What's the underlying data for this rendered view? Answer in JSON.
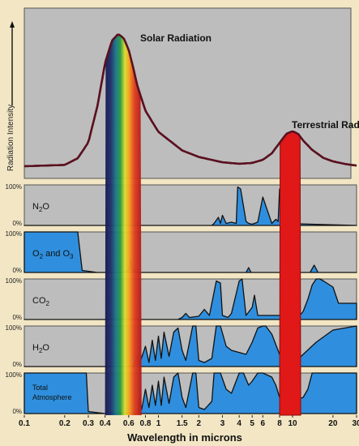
{
  "chart_data": [
    {
      "type": "line",
      "ylabel": "Radiation Intensity",
      "xlabel": "Wavelength in microns",
      "x_scale": "log",
      "xlim": [
        0.1,
        30
      ],
      "series": [
        {
          "name": "Solar Radiation",
          "x": [
            0.1,
            0.2,
            0.25,
            0.3,
            0.35,
            0.4,
            0.45,
            0.5,
            0.55,
            0.6,
            0.65,
            0.7,
            0.8,
            1.0,
            1.5,
            2,
            3,
            5,
            10,
            30
          ],
          "values": [
            0.0,
            0.01,
            0.06,
            0.18,
            0.45,
            0.78,
            0.95,
            1.0,
            0.97,
            0.88,
            0.74,
            0.6,
            0.42,
            0.26,
            0.12,
            0.07,
            0.03,
            0.01,
            0.005,
            0.0
          ]
        },
        {
          "name": "Terrestrial Radiation",
          "x": [
            4,
            5,
            6,
            7,
            8,
            9,
            10,
            11,
            12,
            14,
            17,
            20,
            25,
            30
          ],
          "values": [
            0.0,
            0.015,
            0.04,
            0.09,
            0.17,
            0.24,
            0.26,
            0.24,
            0.19,
            0.12,
            0.06,
            0.035,
            0.015,
            0.005
          ]
        }
      ]
    },
    {
      "type": "area",
      "xlabel": "Wavelength in microns",
      "x_scale": "log",
      "xlim": [
        0.1,
        30
      ],
      "ylim": [
        0,
        100
      ],
      "y_ticks": [
        "0%",
        "100%"
      ],
      "x_ticks": [
        {
          "v": 0.1,
          "label": "0.1"
        },
        {
          "v": 0.2,
          "label": "0.2"
        },
        {
          "v": 0.3,
          "label": "0.3"
        },
        {
          "v": 0.4,
          "label": "0.4"
        },
        {
          "v": 0.6,
          "label": "0.6"
        },
        {
          "v": 0.8,
          "label": "0.8"
        },
        {
          "v": 1,
          "label": "1"
        },
        {
          "v": 1.5,
          "label": "1.5"
        },
        {
          "v": 2,
          "label": "2"
        },
        {
          "v": 3,
          "label": "3"
        },
        {
          "v": 4,
          "label": "4"
        },
        {
          "v": 5,
          "label": "5"
        },
        {
          "v": 6,
          "label": "6"
        },
        {
          "v": 8,
          "label": "8"
        },
        {
          "v": 10,
          "label": "10"
        },
        {
          "v": 20,
          "label": "20"
        },
        {
          "v": 30,
          "label": "30"
        }
      ],
      "series": [
        {
          "name": "N₂O",
          "x": [
            0.1,
            2.5,
            2.6,
            2.8,
            2.9,
            3.0,
            3.2,
            3.5,
            3.8,
            3.9,
            4.1,
            4.5,
            4.7,
            5.0,
            5.5,
            6.0,
            7.0,
            7.5,
            7.8,
            8.0,
            8.5,
            30
          ],
          "values": [
            0,
            0,
            5,
            20,
            5,
            25,
            5,
            8,
            5,
            95,
            90,
            10,
            5,
            3,
            8,
            70,
            5,
            15,
            10,
            90,
            5,
            0
          ]
        },
        {
          "name": "O₂ and O₃",
          "x": [
            0.1,
            0.24,
            0.25,
            0.27,
            0.3,
            0.35,
            0.45,
            0.55,
            0.6,
            0.62,
            0.65,
            0.7,
            1.0,
            4.5,
            4.7,
            4.9,
            9.0,
            9.2,
            9.4,
            9.6,
            9.8,
            10.0,
            13.5,
            14.5,
            15.5,
            30
          ],
          "values": [
            100,
            100,
            100,
            5,
            3,
            0,
            0,
            0,
            5,
            30,
            5,
            0,
            0,
            0,
            12,
            0,
            0,
            40,
            95,
            95,
            40,
            0,
            0,
            18,
            0,
            0
          ]
        },
        {
          "name": "CO₂",
          "x": [
            0.1,
            1.4,
            1.5,
            1.6,
            1.7,
            2.0,
            2.2,
            2.4,
            2.7,
            2.9,
            3.0,
            3.3,
            3.5,
            4.0,
            4.2,
            4.5,
            5.0,
            5.2,
            5.5,
            9.0,
            9.5,
            10.5,
            11,
            12,
            13,
            14,
            15,
            16,
            17,
            20,
            22,
            30
          ],
          "values": [
            0,
            0,
            5,
            15,
            5,
            8,
            25,
            10,
            95,
            90,
            10,
            5,
            15,
            95,
            100,
            10,
            30,
            60,
            10,
            10,
            15,
            10,
            5,
            20,
            50,
            85,
            100,
            100,
            95,
            80,
            40,
            40
          ]
        },
        {
          "name": "H₂O",
          "x": [
            0.1,
            0.65,
            0.7,
            0.72,
            0.8,
            0.85,
            0.9,
            0.95,
            1.0,
            1.05,
            1.1,
            1.2,
            1.3,
            1.4,
            1.5,
            1.6,
            1.8,
            1.9,
            2.0,
            2.2,
            2.5,
            2.7,
            2.9,
            3.2,
            3.5,
            4.5,
            5.0,
            5.5,
            6.0,
            6.3,
            7.0,
            8.0,
            10.0,
            12.0,
            15.0,
            20.0,
            30
          ],
          "values": [
            0,
            0,
            30,
            5,
            50,
            10,
            65,
            15,
            75,
            20,
            85,
            25,
            85,
            95,
            40,
            15,
            100,
            100,
            15,
            10,
            20,
            100,
            100,
            50,
            40,
            30,
            60,
            95,
            100,
            100,
            80,
            30,
            5,
            30,
            60,
            90,
            100
          ]
        },
        {
          "name": "Total Atmosphere",
          "x": [
            0.1,
            0.28,
            0.29,
            0.3,
            0.4,
            0.55,
            0.7,
            0.72,
            0.75,
            0.8,
            0.85,
            0.9,
            0.95,
            1.0,
            1.05,
            1.1,
            1.2,
            1.3,
            1.4,
            1.5,
            1.6,
            1.8,
            1.9,
            2.0,
            2.2,
            2.5,
            2.6,
            2.9,
            3.2,
            3.5,
            4.0,
            4.3,
            4.7,
            5.0,
            5.5,
            6.0,
            7.0,
            7.5,
            8.0,
            9.3,
            9.6,
            10.0,
            11.0,
            12.0,
            13.0,
            14.0,
            18.0,
            20.0,
            30
          ],
          "values": [
            100,
            100,
            100,
            5,
            0,
            2,
            0,
            40,
            10,
            60,
            15,
            70,
            20,
            80,
            20,
            90,
            25,
            90,
            100,
            40,
            15,
            100,
            100,
            15,
            10,
            30,
            100,
            100,
            60,
            50,
            100,
            100,
            70,
            80,
            100,
            100,
            90,
            70,
            40,
            30,
            90,
            40,
            35,
            40,
            60,
            100,
            100,
            100,
            100
          ]
        }
      ]
    }
  ]
}
